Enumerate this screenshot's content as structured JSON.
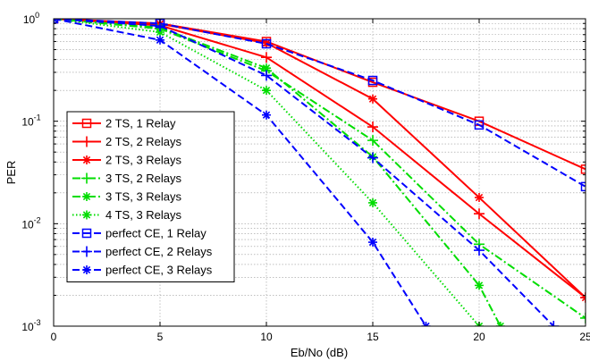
{
  "chart_data": {
    "type": "line",
    "xlabel": "Eb/No (dB)",
    "ylabel": "PER",
    "xlim": [
      0,
      25
    ],
    "ylim": [
      0.001,
      1
    ],
    "yscale": "log",
    "grid": true,
    "legend_position": "lower-left",
    "x_ticks": [
      "0",
      "5",
      "10",
      "15",
      "20",
      "25"
    ],
    "y_ticks": [
      {
        "value": 1,
        "label": "10",
        "exp": "0"
      },
      {
        "value": 0.1,
        "label": "10",
        "exp": "-1"
      },
      {
        "value": 0.01,
        "label": "10",
        "exp": "-2"
      },
      {
        "value": 0.001,
        "label": "10",
        "exp": "-3"
      }
    ],
    "series": [
      {
        "name": "2 TS, 1 Relay",
        "color": "#ff0000",
        "dash": "solid",
        "marker": "square",
        "x": [
          0,
          5,
          10,
          15,
          20,
          25
        ],
        "y": [
          1.0,
          0.9,
          0.6,
          0.24,
          0.1,
          0.034
        ]
      },
      {
        "name": "2 TS, 2 Relays",
        "color": "#ff0000",
        "dash": "solid",
        "marker": "plus",
        "x": [
          0,
          5,
          10,
          15,
          20,
          25
        ],
        "y": [
          1.0,
          0.86,
          0.42,
          0.088,
          0.0125,
          0.0019
        ]
      },
      {
        "name": "2 TS, 3 Relays",
        "color": "#ff0000",
        "dash": "solid",
        "marker": "star",
        "x": [
          0,
          5,
          10,
          15,
          20,
          25
        ],
        "y": [
          1.0,
          0.89,
          0.58,
          0.165,
          0.018,
          0.0019
        ]
      },
      {
        "name": "3 TS, 2 Relays",
        "color": "#00dd00",
        "dash": "dashdot",
        "marker": "plus",
        "x": [
          0,
          5,
          10,
          15,
          20,
          25
        ],
        "y": [
          1.0,
          0.8,
          0.31,
          0.065,
          0.0063,
          0.0012
        ]
      },
      {
        "name": "3 TS, 3 Relays",
        "color": "#00dd00",
        "dash": "dashdot",
        "marker": "star",
        "x": [
          0,
          5,
          10,
          15,
          20,
          21
        ],
        "y": [
          1.0,
          0.82,
          0.33,
          0.045,
          0.0025,
          0.001
        ]
      },
      {
        "name": "4 TS, 3 Relays",
        "color": "#00dd00",
        "dash": "dotted",
        "marker": "star",
        "x": [
          0,
          5,
          10,
          15,
          20,
          20.5
        ],
        "y": [
          1.0,
          0.74,
          0.2,
          0.016,
          0.001,
          0.0007
        ]
      },
      {
        "name": "perfect CE, 1 Relay",
        "color": "#0000ff",
        "dash": "dashed",
        "marker": "square",
        "x": [
          0,
          5,
          10,
          15,
          20,
          25
        ],
        "y": [
          1.0,
          0.9,
          0.57,
          0.25,
          0.092,
          0.023
        ]
      },
      {
        "name": "perfect CE, 2 Relays",
        "color": "#0000ff",
        "dash": "dashed",
        "marker": "plus",
        "x": [
          0,
          5,
          10,
          15,
          20,
          23.5
        ],
        "y": [
          1.0,
          0.85,
          0.28,
          0.044,
          0.0055,
          0.001
        ]
      },
      {
        "name": "perfect CE, 3 Relays",
        "color": "#0000ff",
        "dash": "dashed",
        "marker": "star",
        "x": [
          0,
          5,
          10,
          15,
          17.5
        ],
        "y": [
          1.0,
          0.62,
          0.115,
          0.0066,
          0.001
        ]
      }
    ]
  }
}
